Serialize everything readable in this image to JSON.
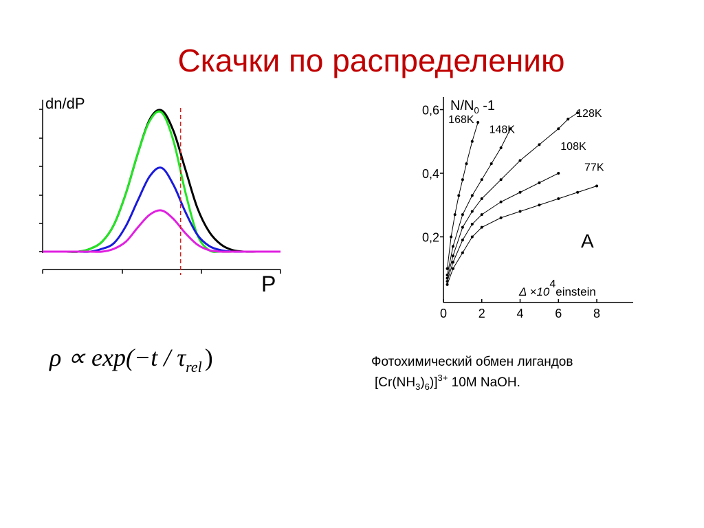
{
  "title": "Скачки по распределению",
  "formula": {
    "main": "ρ ∝ exp(−t / τ",
    "sub": "rel",
    "tail": ")"
  },
  "caption": {
    "line1": "Фотохимический обмен лигандов",
    "line2": [
      "[Cr(NH",
      "3",
      ")",
      "6",
      ")]",
      "3+",
      " 10M NaOH."
    ]
  },
  "chart_data": [
    {
      "type": "line",
      "y_label": "dn/dP",
      "x_label": "P",
      "xlim": [
        0,
        10
      ],
      "ylim": [
        0,
        1.07
      ],
      "x": [
        0,
        0.5,
        1,
        1.5,
        2,
        2.5,
        3,
        3.5,
        4,
        4.5,
        5,
        5.5,
        6,
        6.5,
        7,
        7.5,
        8,
        8.5,
        9,
        9.5,
        10
      ],
      "threshold_x": 5.8,
      "threshold_color": "#d62020",
      "series": [
        {
          "color": "#000000",
          "values": [
            0,
            0,
            0,
            0,
            0.02,
            0.07,
            0.19,
            0.41,
            0.69,
            0.93,
            0.995,
            0.85,
            0.58,
            0.31,
            0.14,
            0.05,
            0.01,
            0,
            0,
            0,
            0
          ]
        },
        {
          "color": "#22e622",
          "values": [
            0,
            0,
            0,
            0,
            0.02,
            0.07,
            0.19,
            0.41,
            0.69,
            0.92,
            0.98,
            0.78,
            0.42,
            0.12,
            0.01,
            0,
            0,
            0,
            0,
            0,
            0
          ]
        },
        {
          "color": "#1a1adc",
          "values": [
            0,
            0,
            0,
            0,
            0,
            0.02,
            0.06,
            0.18,
            0.36,
            0.53,
            0.59,
            0.47,
            0.28,
            0.12,
            0.04,
            0.01,
            0,
            0,
            0,
            0,
            0
          ]
        },
        {
          "color": "#e020e0",
          "values": [
            0,
            0,
            0,
            0,
            0,
            0,
            0.02,
            0.07,
            0.17,
            0.26,
            0.29,
            0.23,
            0.13,
            0.05,
            0.01,
            0,
            0,
            0,
            0,
            0,
            0
          ]
        }
      ]
    },
    {
      "type": "scatter",
      "y_label": {
        "main": "N/N",
        "sub": "0",
        "tail": " -1"
      },
      "x_label": {
        "pre": "Δ ×10",
        "sup": "4",
        "post": "einstein"
      },
      "annotation": "A",
      "xlim": [
        0,
        9.9
      ],
      "ylim": [
        0,
        0.64
      ],
      "xticks": [
        0,
        2,
        4,
        6,
        8
      ],
      "yticks": [
        {
          "value": 0.2,
          "label": "0,2"
        },
        {
          "value": 0.4,
          "label": "0,4"
        },
        {
          "value": 0.6,
          "label": "0,6"
        }
      ],
      "series": [
        {
          "name": "168K",
          "color": "#000000",
          "x": [
            0.2,
            0.4,
            0.6,
            0.8,
            1,
            1.2,
            1.5,
            1.8
          ],
          "values": [
            0.1,
            0.2,
            0.27,
            0.33,
            0.38,
            0.43,
            0.5,
            0.56
          ]
        },
        {
          "name": "148K",
          "color": "#000000",
          "x": [
            0.2,
            0.5,
            1,
            1.5,
            2,
            2.5,
            3,
            3.5
          ],
          "values": [
            0.08,
            0.17,
            0.27,
            0.33,
            0.38,
            0.43,
            0.48,
            0.54
          ]
        },
        {
          "name": "128K",
          "color": "#000000",
          "x": [
            0.2,
            0.5,
            1,
            1.5,
            2,
            3,
            4,
            5,
            6,
            6.5,
            7
          ],
          "values": [
            0.07,
            0.14,
            0.23,
            0.28,
            0.32,
            0.38,
            0.44,
            0.49,
            0.54,
            0.57,
            0.59
          ]
        },
        {
          "name": "108K",
          "color": "#000000",
          "x": [
            0.2,
            0.5,
            1,
            1.5,
            2,
            3,
            4,
            5,
            6
          ],
          "values": [
            0.06,
            0.12,
            0.19,
            0.24,
            0.27,
            0.31,
            0.34,
            0.37,
            0.4
          ]
        },
        {
          "name": "77K",
          "color": "#000000",
          "x": [
            0.2,
            0.5,
            1,
            1.5,
            2,
            3,
            4,
            5,
            6,
            7,
            8
          ],
          "values": [
            0.05,
            0.1,
            0.15,
            0.2,
            0.23,
            0.26,
            0.28,
            0.3,
            0.32,
            0.34,
            0.36
          ]
        }
      ]
    }
  ]
}
